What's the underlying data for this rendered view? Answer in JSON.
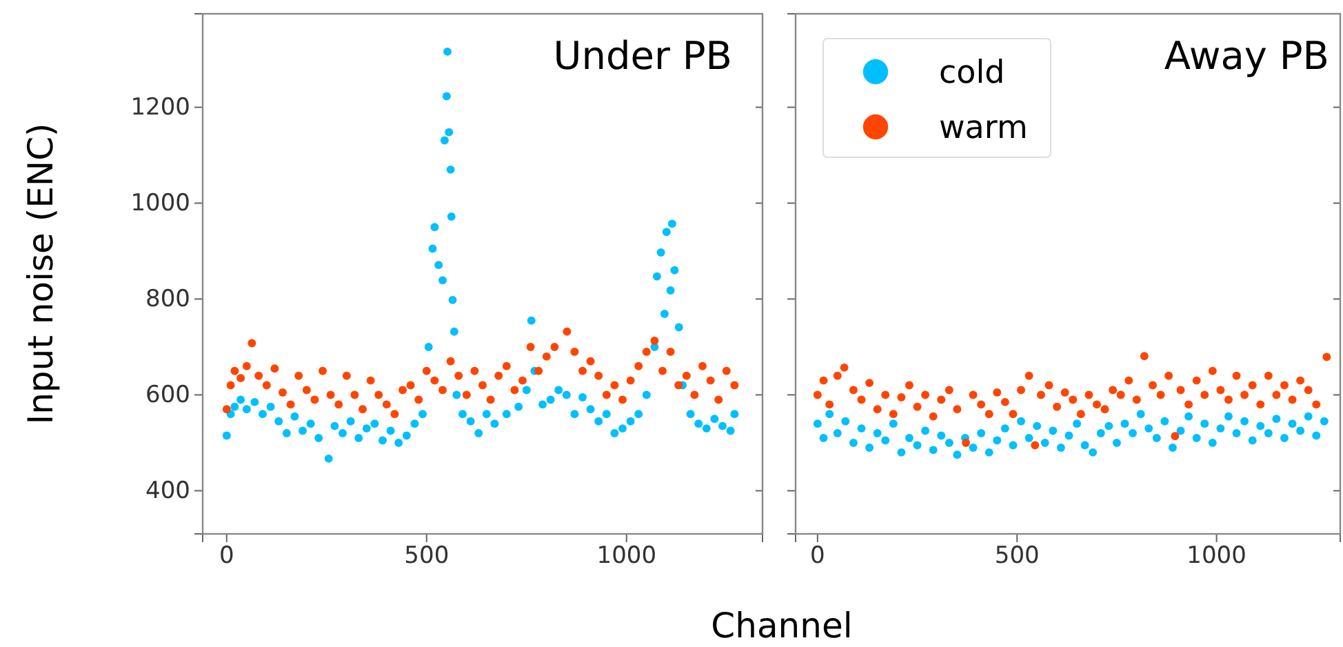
{
  "chart_data": [
    {
      "type": "scatter",
      "title": "Under PB",
      "xlabel": "Channel",
      "ylabel": "Input noise (ENC)",
      "xlim": [
        -60,
        1340
      ],
      "ylim": [
        310,
        1395
      ],
      "xticks": [
        0,
        500,
        1000
      ],
      "yticks": [
        400,
        600,
        800,
        1000,
        1200
      ],
      "marker": "circle",
      "grid": false,
      "legend": false,
      "series": [
        {
          "color": "#00bfff",
          "x": [
            0,
            10,
            20,
            35,
            50,
            70,
            90,
            110,
            130,
            150,
            170,
            190,
            210,
            230,
            255,
            270,
            290,
            310,
            330,
            350,
            370,
            390,
            410,
            430,
            450,
            470,
            490,
            505,
            515,
            520,
            530,
            540,
            545,
            550,
            552,
            556,
            560,
            562,
            565,
            569,
            575,
            590,
            610,
            630,
            650,
            670,
            700,
            730,
            750,
            762,
            770,
            790,
            810,
            830,
            850,
            870,
            890,
            910,
            930,
            950,
            970,
            990,
            1010,
            1030,
            1050,
            1070,
            1076,
            1086,
            1095,
            1100,
            1110,
            1114,
            1120,
            1131,
            1140,
            1160,
            1180,
            1200,
            1220,
            1240,
            1260,
            1270
          ],
          "values": [
            515,
            560,
            575,
            590,
            570,
            585,
            560,
            575,
            545,
            520,
            555,
            525,
            540,
            510,
            467,
            535,
            520,
            545,
            510,
            530,
            540,
            505,
            525,
            500,
            515,
            540,
            560,
            700,
            905,
            950,
            871,
            839,
            1131,
            1223,
            1316,
            1148,
            1070,
            972,
            798,
            732,
            600,
            560,
            545,
            520,
            560,
            540,
            560,
            575,
            610,
            755,
            650,
            580,
            590,
            610,
            600,
            560,
            595,
            570,
            545,
            560,
            520,
            530,
            545,
            560,
            600,
            700,
            847,
            897,
            769,
            940,
            818,
            957,
            860,
            741,
            620,
            560,
            540,
            530,
            550,
            535,
            525,
            560
          ]
        },
        {
          "color": "#ff4500",
          "x": [
            0,
            10,
            20,
            35,
            50,
            63,
            80,
            100,
            120,
            140,
            160,
            180,
            200,
            220,
            240,
            260,
            280,
            300,
            320,
            340,
            360,
            380,
            400,
            420,
            440,
            460,
            480,
            500,
            520,
            540,
            560,
            580,
            600,
            620,
            640,
            660,
            680,
            700,
            720,
            740,
            760,
            780,
            800,
            820,
            851,
            870,
            890,
            910,
            930,
            950,
            970,
            990,
            1010,
            1030,
            1050,
            1070,
            1090,
            1110,
            1130,
            1150,
            1170,
            1190,
            1210,
            1230,
            1250,
            1270
          ],
          "values": [
            570,
            620,
            650,
            635,
            660,
            708,
            640,
            620,
            655,
            605,
            580,
            640,
            610,
            590,
            650,
            600,
            580,
            640,
            600,
            570,
            630,
            600,
            580,
            560,
            610,
            620,
            590,
            650,
            630,
            610,
            670,
            640,
            600,
            650,
            620,
            590,
            640,
            660,
            610,
            630,
            700,
            650,
            680,
            700,
            732,
            690,
            650,
            670,
            640,
            600,
            620,
            590,
            630,
            660,
            690,
            713,
            650,
            690,
            620,
            640,
            600,
            660,
            630,
            590,
            650,
            620
          ]
        }
      ]
    },
    {
      "type": "scatter",
      "title": "Away PB",
      "xlim": [
        -55,
        1310
      ],
      "ylim": [
        310,
        1395
      ],
      "xticks": [
        0,
        500,
        1000
      ],
      "yticks": [
        400,
        600,
        800,
        1000,
        1200
      ],
      "tick_labels": "x",
      "marker": "circle",
      "grid": false,
      "legend": "top left",
      "series": [
        {
          "name": "cold",
          "color": "#00bfff",
          "x": [
            0,
            15,
            30,
            50,
            70,
            90,
            110,
            130,
            150,
            170,
            190,
            210,
            230,
            250,
            270,
            290,
            310,
            330,
            350,
            370,
            390,
            410,
            430,
            450,
            470,
            490,
            510,
            530,
            550,
            570,
            590,
            610,
            630,
            650,
            670,
            690,
            710,
            730,
            750,
            770,
            790,
            810,
            830,
            850,
            870,
            890,
            910,
            930,
            950,
            970,
            990,
            1010,
            1030,
            1050,
            1070,
            1090,
            1110,
            1130,
            1150,
            1170,
            1190,
            1210,
            1230,
            1250,
            1270
          ],
          "values": [
            540,
            510,
            560,
            520,
            545,
            500,
            530,
            490,
            520,
            505,
            540,
            480,
            510,
            495,
            525,
            485,
            515,
            500,
            475,
            510,
            490,
            520,
            480,
            505,
            530,
            495,
            545,
            510,
            535,
            500,
            525,
            490,
            515,
            540,
            495,
            480,
            520,
            535,
            500,
            540,
            520,
            560,
            530,
            510,
            545,
            490,
            525,
            555,
            510,
            540,
            500,
            530,
            555,
            520,
            545,
            505,
            535,
            520,
            550,
            510,
            540,
            525,
            555,
            515,
            545
          ]
        },
        {
          "name": "warm",
          "color": "#ff4500",
          "x": [
            0,
            15,
            30,
            50,
            67,
            90,
            110,
            130,
            150,
            170,
            190,
            210,
            230,
            250,
            270,
            290,
            310,
            330,
            350,
            372,
            390,
            410,
            430,
            450,
            470,
            490,
            510,
            530,
            545,
            560,
            580,
            600,
            620,
            640,
            660,
            680,
            700,
            720,
            740,
            760,
            780,
            800,
            819,
            840,
            860,
            880,
            896,
            910,
            930,
            950,
            970,
            990,
            1010,
            1030,
            1050,
            1070,
            1090,
            1110,
            1130,
            1150,
            1170,
            1190,
            1210,
            1230,
            1250,
            1276
          ],
          "values": [
            600,
            630,
            580,
            640,
            657,
            610,
            590,
            625,
            570,
            600,
            560,
            595,
            620,
            575,
            600,
            555,
            590,
            610,
            570,
            500,
            600,
            580,
            560,
            605,
            585,
            560,
            610,
            640,
            495,
            600,
            620,
            575,
            605,
            590,
            560,
            600,
            580,
            570,
            610,
            600,
            630,
            590,
            681,
            620,
            600,
            640,
            514,
            610,
            580,
            630,
            600,
            650,
            610,
            590,
            640,
            600,
            620,
            580,
            640,
            600,
            620,
            590,
            630,
            610,
            580,
            679
          ]
        }
      ]
    }
  ]
}
